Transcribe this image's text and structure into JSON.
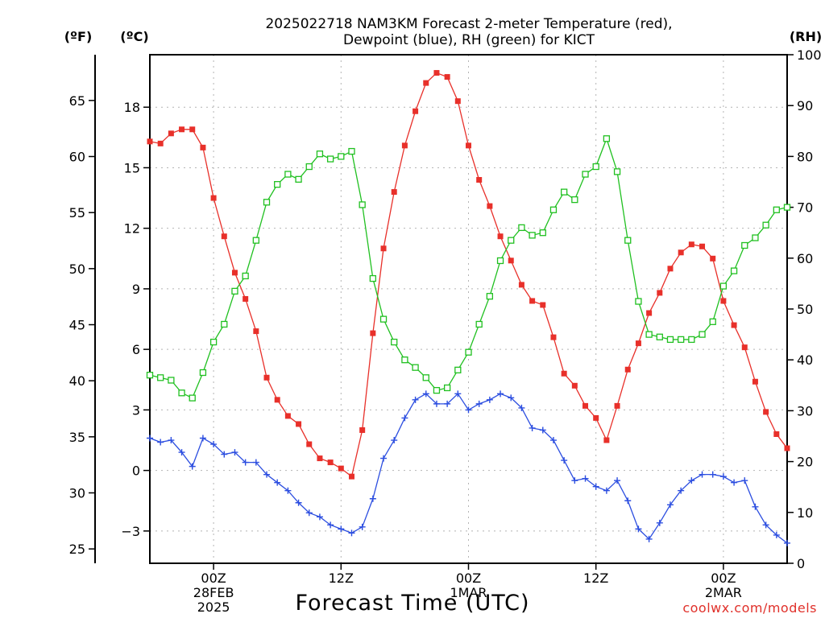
{
  "chart_data": {
    "type": "line",
    "title_line1": "2025022718 NAM3KM Forecast 2-meter Temperature (red),",
    "title_line2": "Dewpoint (blue), RH (green) for KICT",
    "xlabel": "Forecast Time (UTC)",
    "credit": "coolwx.com/models",
    "units": {
      "fahrenheit": "(ºF)",
      "celsius": "(ºC)",
      "rh": "(RH)"
    },
    "x_unit": "forecast hours since 2025-02-27 18Z",
    "xlim": [
      0,
      60
    ],
    "ylim_c": [
      -4.6,
      20.6
    ],
    "ylim_f": [
      23.72,
      69.08
    ],
    "ylim_rh": [
      0,
      100
    ],
    "f_ticks": [
      25,
      30,
      35,
      40,
      45,
      50,
      55,
      60,
      65
    ],
    "c_ticks": [
      -3,
      0,
      3,
      6,
      9,
      12,
      15,
      18
    ],
    "rh_ticks": [
      0,
      10,
      20,
      30,
      40,
      50,
      60,
      70,
      80,
      90,
      100
    ],
    "x_ticks": [
      {
        "hour": 6,
        "labels": [
          "00Z",
          "28FEB",
          "2025"
        ]
      },
      {
        "hour": 18,
        "labels": [
          "12Z"
        ]
      },
      {
        "hour": 30,
        "labels": [
          "00Z",
          "1MAR"
        ]
      },
      {
        "hour": 42,
        "labels": [
          "12Z"
        ]
      },
      {
        "hour": 54,
        "labels": [
          "00Z",
          "2MAR"
        ]
      }
    ],
    "grid": true,
    "series": [
      {
        "name": "Temperature",
        "axis": "celsius",
        "color": "#e8302a",
        "marker": "filled-square",
        "x": [
          0,
          1,
          2,
          3,
          4,
          5,
          6,
          7,
          8,
          9,
          10,
          11,
          12,
          13,
          14,
          15,
          16,
          17,
          18,
          19,
          20,
          21,
          22,
          23,
          24,
          25,
          26,
          27,
          28,
          29,
          30,
          31,
          32,
          33,
          34,
          35,
          36,
          37,
          38,
          39,
          40,
          41,
          42,
          43,
          44,
          45,
          46,
          47,
          48,
          49,
          50,
          51,
          52,
          53,
          54,
          55,
          56,
          57,
          58,
          59,
          60
        ],
        "values": [
          16.3,
          16.2,
          16.7,
          16.9,
          16.9,
          16.0,
          13.5,
          11.6,
          9.8,
          8.5,
          6.9,
          4.6,
          3.5,
          2.7,
          2.3,
          1.3,
          0.6,
          0.4,
          0.1,
          -0.3,
          2.0,
          6.8,
          11.0,
          13.8,
          16.1,
          17.8,
          19.2,
          19.7,
          19.5,
          18.3,
          16.1,
          14.4,
          13.1,
          11.6,
          10.4,
          9.2,
          8.4,
          8.2,
          6.6,
          4.8,
          4.2,
          3.2,
          2.6,
          1.5,
          3.2,
          5.0,
          6.3,
          7.8,
          8.8,
          10.0,
          10.8,
          11.2,
          11.1,
          10.5,
          8.4,
          7.2,
          6.1,
          4.4,
          2.9,
          1.8,
          1.1
        ]
      },
      {
        "name": "Dewpoint",
        "axis": "celsius",
        "color": "#2c4ee0",
        "marker": "plus",
        "x": [
          0,
          1,
          2,
          3,
          4,
          5,
          6,
          7,
          8,
          9,
          10,
          11,
          12,
          13,
          14,
          15,
          16,
          17,
          18,
          19,
          20,
          21,
          22,
          23,
          24,
          25,
          26,
          27,
          28,
          29,
          30,
          31,
          32,
          33,
          34,
          35,
          36,
          37,
          38,
          39,
          40,
          41,
          42,
          43,
          44,
          45,
          46,
          47,
          48,
          49,
          50,
          51,
          52,
          53,
          54,
          55,
          56,
          57,
          58,
          59,
          60
        ],
        "values": [
          1.6,
          1.4,
          1.5,
          0.9,
          0.2,
          1.6,
          1.3,
          0.8,
          0.9,
          0.4,
          0.4,
          -0.2,
          -0.6,
          -1.0,
          -1.6,
          -2.1,
          -2.3,
          -2.7,
          -2.9,
          -3.1,
          -2.8,
          -1.4,
          0.6,
          1.5,
          2.6,
          3.5,
          3.8,
          3.3,
          3.3,
          3.8,
          3.0,
          3.3,
          3.5,
          3.8,
          3.6,
          3.1,
          2.1,
          2.0,
          1.5,
          0.5,
          -0.5,
          -0.4,
          -0.8,
          -1.0,
          -0.5,
          -1.5,
          -2.9,
          -3.4,
          -2.6,
          -1.7,
          -1.0,
          -0.5,
          -0.2,
          -0.2,
          -0.3,
          -0.6,
          -0.5,
          -1.8,
          -2.7,
          -3.2,
          -3.6
        ]
      },
      {
        "name": "RH",
        "axis": "rh",
        "color": "#20c020",
        "marker": "open-square",
        "x": [
          0,
          1,
          2,
          3,
          4,
          5,
          6,
          7,
          8,
          9,
          10,
          11,
          12,
          13,
          14,
          15,
          16,
          17,
          18,
          19,
          20,
          21,
          22,
          23,
          24,
          25,
          26,
          27,
          28,
          29,
          30,
          31,
          32,
          33,
          34,
          35,
          36,
          37,
          38,
          39,
          40,
          41,
          42,
          43,
          44,
          45,
          46,
          47,
          48,
          49,
          50,
          51,
          52,
          53,
          54,
          55,
          56,
          57,
          58,
          59,
          60
        ],
        "values": [
          37,
          36.5,
          36,
          33.5,
          32.5,
          37.5,
          43.5,
          47,
          53.5,
          56.5,
          63.5,
          71,
          74.5,
          76.5,
          75.5,
          78,
          80.5,
          79.5,
          80,
          81,
          70.5,
          56,
          48,
          43.5,
          40,
          38.5,
          36.5,
          34,
          34.5,
          38,
          41.5,
          47,
          52.5,
          59.5,
          63.5,
          66,
          64.5,
          65,
          69.5,
          73,
          71.5,
          76.5,
          78,
          83.5,
          77,
          63.5,
          51.5,
          45,
          44.5,
          44,
          44,
          44,
          45,
          47.5,
          54.5,
          57.5,
          62.5,
          64,
          66.5,
          69.5,
          70
        ]
      }
    ]
  }
}
